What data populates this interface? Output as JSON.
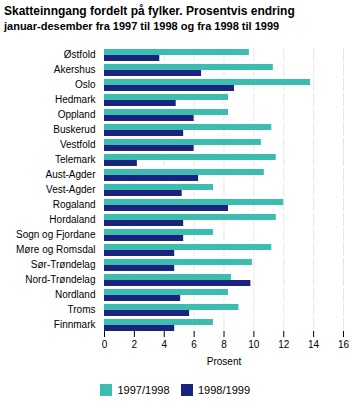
{
  "chart_data": {
    "type": "bar",
    "orientation": "horizontal",
    "title": "Skatteinngang fordelt på fylker. Prosentvis endring",
    "subtitle": "januar-desember fra 1997 til 1998 og fra 1998 til 1999",
    "categories": [
      "Østfold",
      "Akershus",
      "Oslo",
      "Hedmark",
      "Oppland",
      "Buskerud",
      "Vestfold",
      "Telemark",
      "Aust-Agder",
      "Vest-Agder",
      "Rogaland",
      "Hordaland",
      "Sogn og Fjordane",
      "Møre og Romsdal",
      "Sør-Trøndelag",
      "Nord-Trøndelag",
      "Nordland",
      "Troms",
      "Finnmark"
    ],
    "series": [
      {
        "name": "1997/1998",
        "color": "#3dbdb0",
        "values": [
          9.7,
          11.3,
          13.8,
          8.3,
          8.3,
          11.2,
          10.5,
          11.5,
          10.7,
          7.3,
          12.0,
          11.5,
          7.3,
          11.2,
          9.9,
          8.5,
          8.3,
          9.0,
          7.3
        ]
      },
      {
        "name": "1998/1999",
        "color": "#1a237e",
        "values": [
          3.7,
          6.5,
          8.7,
          4.8,
          6.0,
          5.3,
          6.0,
          2.2,
          6.3,
          5.2,
          8.3,
          5.3,
          5.3,
          4.7,
          4.7,
          9.8,
          5.1,
          5.7,
          4.7
        ]
      }
    ],
    "xlabel": "Prosent",
    "xlim": [
      0,
      16
    ],
    "xticks": [
      0,
      2,
      4,
      6,
      8,
      10,
      12,
      14,
      16
    ],
    "grid": true,
    "legend": "bottom"
  }
}
